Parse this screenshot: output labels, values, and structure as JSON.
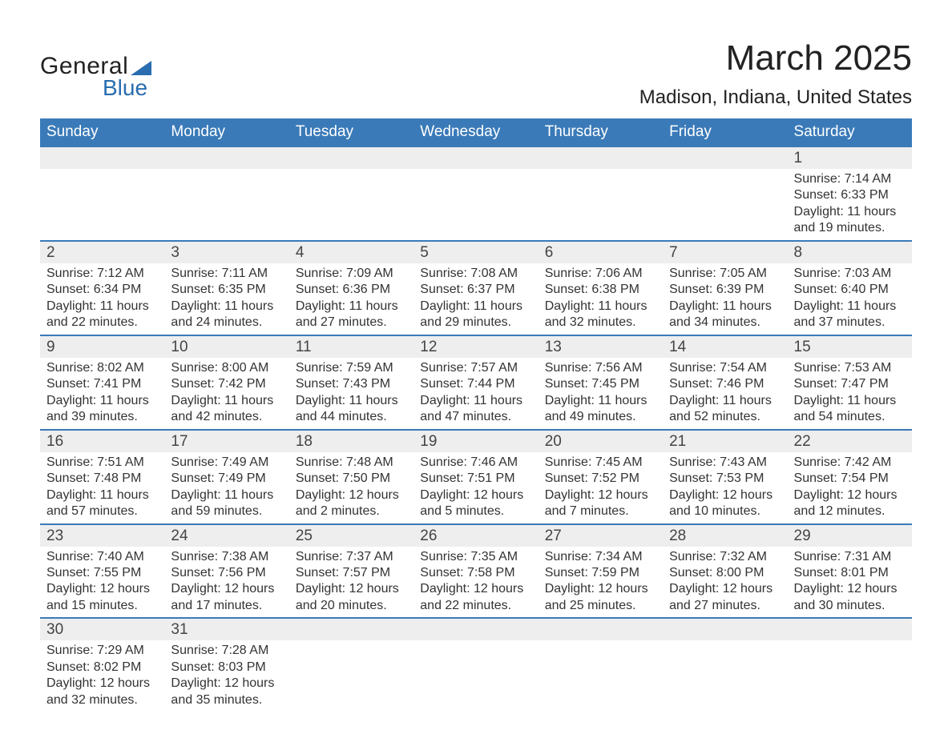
{
  "logo": {
    "text1": "General",
    "text2": "Blue",
    "accent_color": "#2a6db0"
  },
  "title": "March 2025",
  "location": "Madison, Indiana, United States",
  "colors": {
    "header_bg": "#3a7ab8",
    "header_text": "#ffffff",
    "daynum_bg": "#eeeeee",
    "row_border": "#3a7ab8",
    "body_text": "#333333"
  },
  "columns": [
    "Sunday",
    "Monday",
    "Tuesday",
    "Wednesday",
    "Thursday",
    "Friday",
    "Saturday"
  ],
  "weeks": [
    {
      "nums": [
        "",
        "",
        "",
        "",
        "",
        "",
        "1"
      ],
      "cells": [
        null,
        null,
        null,
        null,
        null,
        null,
        {
          "sunrise": "Sunrise: 7:14 AM",
          "sunset": "Sunset: 6:33 PM",
          "day1": "Daylight: 11 hours",
          "day2": "and 19 minutes."
        }
      ]
    },
    {
      "nums": [
        "2",
        "3",
        "4",
        "5",
        "6",
        "7",
        "8"
      ],
      "cells": [
        {
          "sunrise": "Sunrise: 7:12 AM",
          "sunset": "Sunset: 6:34 PM",
          "day1": "Daylight: 11 hours",
          "day2": "and 22 minutes."
        },
        {
          "sunrise": "Sunrise: 7:11 AM",
          "sunset": "Sunset: 6:35 PM",
          "day1": "Daylight: 11 hours",
          "day2": "and 24 minutes."
        },
        {
          "sunrise": "Sunrise: 7:09 AM",
          "sunset": "Sunset: 6:36 PM",
          "day1": "Daylight: 11 hours",
          "day2": "and 27 minutes."
        },
        {
          "sunrise": "Sunrise: 7:08 AM",
          "sunset": "Sunset: 6:37 PM",
          "day1": "Daylight: 11 hours",
          "day2": "and 29 minutes."
        },
        {
          "sunrise": "Sunrise: 7:06 AM",
          "sunset": "Sunset: 6:38 PM",
          "day1": "Daylight: 11 hours",
          "day2": "and 32 minutes."
        },
        {
          "sunrise": "Sunrise: 7:05 AM",
          "sunset": "Sunset: 6:39 PM",
          "day1": "Daylight: 11 hours",
          "day2": "and 34 minutes."
        },
        {
          "sunrise": "Sunrise: 7:03 AM",
          "sunset": "Sunset: 6:40 PM",
          "day1": "Daylight: 11 hours",
          "day2": "and 37 minutes."
        }
      ]
    },
    {
      "nums": [
        "9",
        "10",
        "11",
        "12",
        "13",
        "14",
        "15"
      ],
      "cells": [
        {
          "sunrise": "Sunrise: 8:02 AM",
          "sunset": "Sunset: 7:41 PM",
          "day1": "Daylight: 11 hours",
          "day2": "and 39 minutes."
        },
        {
          "sunrise": "Sunrise: 8:00 AM",
          "sunset": "Sunset: 7:42 PM",
          "day1": "Daylight: 11 hours",
          "day2": "and 42 minutes."
        },
        {
          "sunrise": "Sunrise: 7:59 AM",
          "sunset": "Sunset: 7:43 PM",
          "day1": "Daylight: 11 hours",
          "day2": "and 44 minutes."
        },
        {
          "sunrise": "Sunrise: 7:57 AM",
          "sunset": "Sunset: 7:44 PM",
          "day1": "Daylight: 11 hours",
          "day2": "and 47 minutes."
        },
        {
          "sunrise": "Sunrise: 7:56 AM",
          "sunset": "Sunset: 7:45 PM",
          "day1": "Daylight: 11 hours",
          "day2": "and 49 minutes."
        },
        {
          "sunrise": "Sunrise: 7:54 AM",
          "sunset": "Sunset: 7:46 PM",
          "day1": "Daylight: 11 hours",
          "day2": "and 52 minutes."
        },
        {
          "sunrise": "Sunrise: 7:53 AM",
          "sunset": "Sunset: 7:47 PM",
          "day1": "Daylight: 11 hours",
          "day2": "and 54 minutes."
        }
      ]
    },
    {
      "nums": [
        "16",
        "17",
        "18",
        "19",
        "20",
        "21",
        "22"
      ],
      "cells": [
        {
          "sunrise": "Sunrise: 7:51 AM",
          "sunset": "Sunset: 7:48 PM",
          "day1": "Daylight: 11 hours",
          "day2": "and 57 minutes."
        },
        {
          "sunrise": "Sunrise: 7:49 AM",
          "sunset": "Sunset: 7:49 PM",
          "day1": "Daylight: 11 hours",
          "day2": "and 59 minutes."
        },
        {
          "sunrise": "Sunrise: 7:48 AM",
          "sunset": "Sunset: 7:50 PM",
          "day1": "Daylight: 12 hours",
          "day2": "and 2 minutes."
        },
        {
          "sunrise": "Sunrise: 7:46 AM",
          "sunset": "Sunset: 7:51 PM",
          "day1": "Daylight: 12 hours",
          "day2": "and 5 minutes."
        },
        {
          "sunrise": "Sunrise: 7:45 AM",
          "sunset": "Sunset: 7:52 PM",
          "day1": "Daylight: 12 hours",
          "day2": "and 7 minutes."
        },
        {
          "sunrise": "Sunrise: 7:43 AM",
          "sunset": "Sunset: 7:53 PM",
          "day1": "Daylight: 12 hours",
          "day2": "and 10 minutes."
        },
        {
          "sunrise": "Sunrise: 7:42 AM",
          "sunset": "Sunset: 7:54 PM",
          "day1": "Daylight: 12 hours",
          "day2": "and 12 minutes."
        }
      ]
    },
    {
      "nums": [
        "23",
        "24",
        "25",
        "26",
        "27",
        "28",
        "29"
      ],
      "cells": [
        {
          "sunrise": "Sunrise: 7:40 AM",
          "sunset": "Sunset: 7:55 PM",
          "day1": "Daylight: 12 hours",
          "day2": "and 15 minutes."
        },
        {
          "sunrise": "Sunrise: 7:38 AM",
          "sunset": "Sunset: 7:56 PM",
          "day1": "Daylight: 12 hours",
          "day2": "and 17 minutes."
        },
        {
          "sunrise": "Sunrise: 7:37 AM",
          "sunset": "Sunset: 7:57 PM",
          "day1": "Daylight: 12 hours",
          "day2": "and 20 minutes."
        },
        {
          "sunrise": "Sunrise: 7:35 AM",
          "sunset": "Sunset: 7:58 PM",
          "day1": "Daylight: 12 hours",
          "day2": "and 22 minutes."
        },
        {
          "sunrise": "Sunrise: 7:34 AM",
          "sunset": "Sunset: 7:59 PM",
          "day1": "Daylight: 12 hours",
          "day2": "and 25 minutes."
        },
        {
          "sunrise": "Sunrise: 7:32 AM",
          "sunset": "Sunset: 8:00 PM",
          "day1": "Daylight: 12 hours",
          "day2": "and 27 minutes."
        },
        {
          "sunrise": "Sunrise: 7:31 AM",
          "sunset": "Sunset: 8:01 PM",
          "day1": "Daylight: 12 hours",
          "day2": "and 30 minutes."
        }
      ]
    },
    {
      "nums": [
        "30",
        "31",
        "",
        "",
        "",
        "",
        ""
      ],
      "cells": [
        {
          "sunrise": "Sunrise: 7:29 AM",
          "sunset": "Sunset: 8:02 PM",
          "day1": "Daylight: 12 hours",
          "day2": "and 32 minutes."
        },
        {
          "sunrise": "Sunrise: 7:28 AM",
          "sunset": "Sunset: 8:03 PM",
          "day1": "Daylight: 12 hours",
          "day2": "and 35 minutes."
        },
        null,
        null,
        null,
        null,
        null
      ]
    }
  ]
}
